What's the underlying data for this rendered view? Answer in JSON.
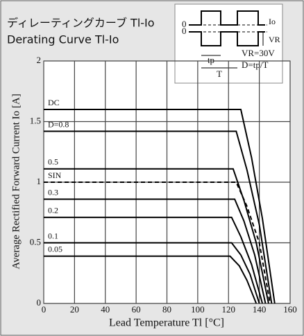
{
  "chart_data": {
    "type": "line",
    "title": "ディレーティングカーブ Tl-Io",
    "subtitle": "Derating Curve Tl-Io",
    "x_label": "Lead Temperature  Tl [°C]",
    "y_label": "Average Rectified Forward Current  Io [A]",
    "xlim": [
      0,
      160
    ],
    "ylim": [
      0,
      2
    ],
    "xticks": [
      0,
      20,
      40,
      60,
      80,
      100,
      120,
      140,
      160
    ],
    "yticks": [
      0,
      0.5,
      1,
      1.5,
      2
    ],
    "grid": true,
    "series": [
      {
        "name": "DC",
        "color": "#000000",
        "x": [
          0,
          128,
          135,
          142,
          150
        ],
        "values": [
          1.6,
          1.6,
          1.2,
          0.7,
          0
        ]
      },
      {
        "name": "D=0.8",
        "color": "#000000",
        "x": [
          0,
          125,
          132,
          140,
          148
        ],
        "values": [
          1.42,
          1.42,
          1.1,
          0.65,
          0
        ]
      },
      {
        "name": "0.5",
        "color": "#000000",
        "x": [
          0,
          123,
          130,
          138,
          146
        ],
        "values": [
          1.11,
          1.11,
          0.85,
          0.5,
          0
        ]
      },
      {
        "name": "SIN",
        "color": "#000000",
        "dashed": true,
        "x": [
          0,
          125,
          132,
          140,
          147
        ],
        "values": [
          1.0,
          1.0,
          0.8,
          0.5,
          0
        ]
      },
      {
        "name": "0.3",
        "color": "#000000",
        "x": [
          0,
          124,
          130,
          137,
          144
        ],
        "values": [
          0.86,
          0.86,
          0.68,
          0.4,
          0
        ]
      },
      {
        "name": "0.2",
        "color": "#000000",
        "x": [
          0,
          122,
          128,
          135,
          142
        ],
        "values": [
          0.71,
          0.71,
          0.55,
          0.32,
          0
        ]
      },
      {
        "name": "0.1",
        "color": "#000000",
        "x": [
          0,
          122,
          128,
          134,
          140
        ],
        "values": [
          0.5,
          0.5,
          0.4,
          0.24,
          0
        ]
      },
      {
        "name": "0.05",
        "color": "#000000",
        "x": [
          0,
          121,
          127,
          132,
          138
        ],
        "values": [
          0.39,
          0.39,
          0.31,
          0.19,
          0
        ]
      }
    ],
    "inset": {
      "zero_top": "0",
      "zero_bottom": "0",
      "io": "Io",
      "vr": "VR",
      "vr_value": "VR=30V",
      "duty": "D=tp/T",
      "tp": "tp",
      "period": "T"
    }
  }
}
